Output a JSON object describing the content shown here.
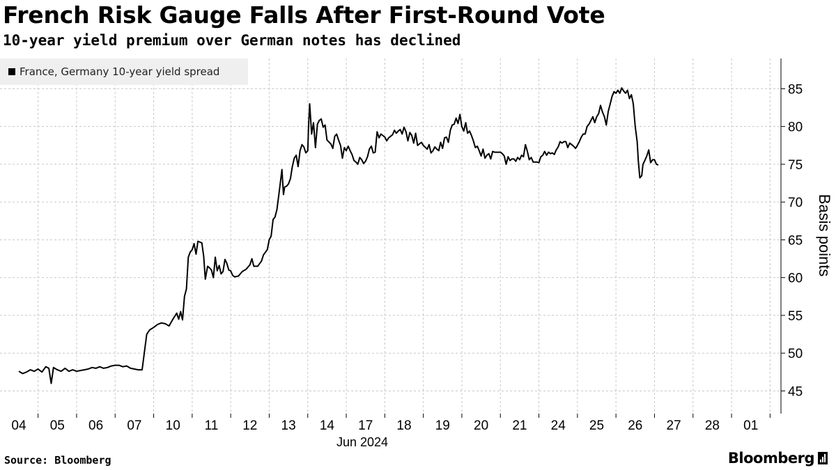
{
  "chart_data": {
    "type": "line",
    "title": "French Risk Gauge Falls After First-Round Vote",
    "subtitle": "10-year yield premium over German notes has declined",
    "ylabel": "Basis points",
    "xlabel": "",
    "ylim": [
      42,
      89
    ],
    "yticks": [
      45,
      50,
      55,
      60,
      65,
      70,
      75,
      80,
      85
    ],
    "categories": [
      "04",
      "05",
      "06",
      "07",
      "10",
      "11",
      "12",
      "13",
      "14",
      "17",
      "18",
      "19",
      "20",
      "21",
      "24",
      "25",
      "26",
      "27",
      "28",
      "01"
    ],
    "month_label": "Jun 2024",
    "legend": [
      "France, Germany 10-year yield spread"
    ],
    "series": [
      {
        "name": "France, Germany 10-year yield spread",
        "color": "#000000",
        "values": [
          [
            0.0,
            47.6
          ],
          [
            0.1,
            47.3
          ],
          [
            0.2,
            47.5
          ],
          [
            0.3,
            47.8
          ],
          [
            0.4,
            47.6
          ],
          [
            0.5,
            47.9
          ],
          [
            0.6,
            47.5
          ],
          [
            0.7,
            48.2
          ],
          [
            0.78,
            48.0
          ],
          [
            0.84,
            46.0
          ],
          [
            0.9,
            48.1
          ],
          [
            1.0,
            47.8
          ],
          [
            1.1,
            47.6
          ],
          [
            1.2,
            48.0
          ],
          [
            1.3,
            47.6
          ],
          [
            1.4,
            47.8
          ],
          [
            1.5,
            47.6
          ],
          [
            1.6,
            47.7
          ],
          [
            1.7,
            47.8
          ],
          [
            1.8,
            47.9
          ],
          [
            1.9,
            48.1
          ],
          [
            2.0,
            48.0
          ],
          [
            2.1,
            48.2
          ],
          [
            2.2,
            48.0
          ],
          [
            2.3,
            48.1
          ],
          [
            2.4,
            48.3
          ],
          [
            2.5,
            48.4
          ],
          [
            2.6,
            48.4
          ],
          [
            2.7,
            48.2
          ],
          [
            2.8,
            48.3
          ],
          [
            2.9,
            48.0
          ],
          [
            3.0,
            47.9
          ],
          [
            3.1,
            47.8
          ],
          [
            3.2,
            47.8
          ],
          [
            3.32,
            52.5
          ],
          [
            3.4,
            53.1
          ],
          [
            3.5,
            53.4
          ],
          [
            3.6,
            53.8
          ],
          [
            3.7,
            54.0
          ],
          [
            3.8,
            53.9
          ],
          [
            3.9,
            53.6
          ],
          [
            4.0,
            54.5
          ],
          [
            4.1,
            55.3
          ],
          [
            4.15,
            54.5
          ],
          [
            4.2,
            55.5
          ],
          [
            4.25,
            54.4
          ],
          [
            4.3,
            57.5
          ],
          [
            4.35,
            58.5
          ],
          [
            4.4,
            62.7
          ],
          [
            4.45,
            63.4
          ],
          [
            4.5,
            63.7
          ],
          [
            4.55,
            64.5
          ],
          [
            4.6,
            63.1
          ],
          [
            4.65,
            64.8
          ],
          [
            4.7,
            64.7
          ],
          [
            4.75,
            64.6
          ],
          [
            4.8,
            62.8
          ],
          [
            4.84,
            59.8
          ],
          [
            4.9,
            61.5
          ],
          [
            4.95,
            61.3
          ],
          [
            5.0,
            61.0
          ],
          [
            5.05,
            60.0
          ],
          [
            5.1,
            62.7
          ],
          [
            5.15,
            60.9
          ],
          [
            5.2,
            61.6
          ],
          [
            5.25,
            60.5
          ],
          [
            5.3,
            60.8
          ],
          [
            5.35,
            62.4
          ],
          [
            5.4,
            61.9
          ],
          [
            5.45,
            61.0
          ],
          [
            5.5,
            60.9
          ],
          [
            5.55,
            60.3
          ],
          [
            5.6,
            60.1
          ],
          [
            5.7,
            60.2
          ],
          [
            5.8,
            60.8
          ],
          [
            5.9,
            61.1
          ],
          [
            6.0,
            61.7
          ],
          [
            6.05,
            62.5
          ],
          [
            6.1,
            61.5
          ],
          [
            6.2,
            61.5
          ],
          [
            6.3,
            62.2
          ],
          [
            6.35,
            63.0
          ],
          [
            6.45,
            63.7
          ],
          [
            6.5,
            65.0
          ],
          [
            6.55,
            65.5
          ],
          [
            6.6,
            67.7
          ],
          [
            6.65,
            68.0
          ],
          [
            6.7,
            69.0
          ],
          [
            6.75,
            71.0
          ],
          [
            6.8,
            73.0
          ],
          [
            6.83,
            74.3
          ],
          [
            6.87,
            71.0
          ],
          [
            6.9,
            72.0
          ],
          [
            6.95,
            72.1
          ],
          [
            7.0,
            72.4
          ],
          [
            7.05,
            73.1
          ],
          [
            7.1,
            74.7
          ],
          [
            7.15,
            75.8
          ],
          [
            7.2,
            76.2
          ],
          [
            7.25,
            74.7
          ],
          [
            7.3,
            76.8
          ],
          [
            7.35,
            77.6
          ],
          [
            7.4,
            77.3
          ],
          [
            7.45,
            76.5
          ],
          [
            7.5,
            76.8
          ],
          [
            7.52,
            80.0
          ],
          [
            7.55,
            83.0
          ],
          [
            7.6,
            79.0
          ],
          [
            7.65,
            80.5
          ],
          [
            7.7,
            77.2
          ],
          [
            7.75,
            80.3
          ],
          [
            7.8,
            80.8
          ],
          [
            7.85,
            81.0
          ],
          [
            7.9,
            79.9
          ],
          [
            7.95,
            80.2
          ],
          [
            8.0,
            78.2
          ],
          [
            8.1,
            77.7
          ],
          [
            8.15,
            77.1
          ],
          [
            8.2,
            78.7
          ],
          [
            8.25,
            79.0
          ],
          [
            8.3,
            78.2
          ],
          [
            8.35,
            77.5
          ],
          [
            8.4,
            75.8
          ],
          [
            8.45,
            77.2
          ],
          [
            8.5,
            76.8
          ],
          [
            8.55,
            77.4
          ],
          [
            8.6,
            76.8
          ],
          [
            8.65,
            76.3
          ],
          [
            8.7,
            75.5
          ],
          [
            8.75,
            75.3
          ],
          [
            8.8,
            75.0
          ],
          [
            8.85,
            75.9
          ],
          [
            8.9,
            75.6
          ],
          [
            8.95,
            75.1
          ],
          [
            9.0,
            75.4
          ],
          [
            9.05,
            76.0
          ],
          [
            9.1,
            77.0
          ],
          [
            9.15,
            77.4
          ],
          [
            9.2,
            76.5
          ],
          [
            9.25,
            76.6
          ],
          [
            9.3,
            79.3
          ],
          [
            9.35,
            78.5
          ],
          [
            9.4,
            79.0
          ],
          [
            9.5,
            78.6
          ],
          [
            9.55,
            78.1
          ],
          [
            9.6,
            78.5
          ],
          [
            9.7,
            78.9
          ],
          [
            9.75,
            79.5
          ],
          [
            9.8,
            79.1
          ],
          [
            9.85,
            79.4
          ],
          [
            9.9,
            79.6
          ],
          [
            9.95,
            79.0
          ],
          [
            10.0,
            79.9
          ],
          [
            10.05,
            79.3
          ],
          [
            10.1,
            78.1
          ],
          [
            10.15,
            79.2
          ],
          [
            10.2,
            78.8
          ],
          [
            10.25,
            77.8
          ],
          [
            10.3,
            79.1
          ],
          [
            10.35,
            77.5
          ],
          [
            10.45,
            77.9
          ],
          [
            10.5,
            77.5
          ],
          [
            10.6,
            77.0
          ],
          [
            10.65,
            77.6
          ],
          [
            10.7,
            76.5
          ],
          [
            10.75,
            76.8
          ],
          [
            10.8,
            77.3
          ],
          [
            10.85,
            77.0
          ],
          [
            10.9,
            76.8
          ],
          [
            10.95,
            77.9
          ],
          [
            11.0,
            77.1
          ],
          [
            11.05,
            78.5
          ],
          [
            11.1,
            78.6
          ],
          [
            11.15,
            77.9
          ],
          [
            11.2,
            79.5
          ],
          [
            11.25,
            80.2
          ],
          [
            11.3,
            80.3
          ],
          [
            11.35,
            81.1
          ],
          [
            11.4,
            80.4
          ],
          [
            11.45,
            81.6
          ],
          [
            11.5,
            80.0
          ],
          [
            11.55,
            79.4
          ],
          [
            11.6,
            80.5
          ],
          [
            11.65,
            79.1
          ],
          [
            11.7,
            79.4
          ],
          [
            11.75,
            78.8
          ],
          [
            11.8,
            78.1
          ],
          [
            11.85,
            77.2
          ],
          [
            11.9,
            77.4
          ],
          [
            11.95,
            76.8
          ],
          [
            12.0,
            76.1
          ],
          [
            12.05,
            77.0
          ],
          [
            12.1,
            75.8
          ],
          [
            12.15,
            76.2
          ],
          [
            12.2,
            76.4
          ],
          [
            12.25,
            75.7
          ],
          [
            12.3,
            76.7
          ],
          [
            12.35,
            76.6
          ],
          [
            12.4,
            76.6
          ],
          [
            12.5,
            76.6
          ],
          [
            12.55,
            76.4
          ],
          [
            12.6,
            76.1
          ],
          [
            12.65,
            75.0
          ],
          [
            12.7,
            76.0
          ],
          [
            12.75,
            75.5
          ],
          [
            12.8,
            75.7
          ],
          [
            12.85,
            75.7
          ],
          [
            12.9,
            75.4
          ],
          [
            12.95,
            75.9
          ],
          [
            13.0,
            75.6
          ],
          [
            13.05,
            76.2
          ],
          [
            13.1,
            76.0
          ],
          [
            13.15,
            77.6
          ],
          [
            13.2,
            76.7
          ],
          [
            13.25,
            75.6
          ],
          [
            13.3,
            75.9
          ],
          [
            13.35,
            75.3
          ],
          [
            13.4,
            75.3
          ],
          [
            13.45,
            75.3
          ],
          [
            13.5,
            75.2
          ],
          [
            13.55,
            76.0
          ],
          [
            13.6,
            76.2
          ],
          [
            13.65,
            76.7
          ],
          [
            13.7,
            76.2
          ],
          [
            13.75,
            76.6
          ],
          [
            13.8,
            76.4
          ],
          [
            13.85,
            76.5
          ],
          [
            13.9,
            76.3
          ],
          [
            13.95,
            76.9
          ],
          [
            14.0,
            77.3
          ],
          [
            14.05,
            78.0
          ],
          [
            14.1,
            77.8
          ],
          [
            14.15,
            78.0
          ],
          [
            14.2,
            78.0
          ],
          [
            14.25,
            77.2
          ],
          [
            14.3,
            77.8
          ],
          [
            14.35,
            77.6
          ],
          [
            14.4,
            77.4
          ],
          [
            14.45,
            77.1
          ],
          [
            14.5,
            77.5
          ],
          [
            14.55,
            78.0
          ],
          [
            14.6,
            78.6
          ],
          [
            14.65,
            79.0
          ],
          [
            14.7,
            79.0
          ],
          [
            14.75,
            80.0
          ],
          [
            14.8,
            80.3
          ],
          [
            14.85,
            80.8
          ],
          [
            14.9,
            81.3
          ],
          [
            14.95,
            80.5
          ],
          [
            15.0,
            81.3
          ],
          [
            15.05,
            81.7
          ],
          [
            15.1,
            82.8
          ],
          [
            15.15,
            81.9
          ],
          [
            15.2,
            81.3
          ],
          [
            15.25,
            80.2
          ],
          [
            15.3,
            82.0
          ],
          [
            15.35,
            83.0
          ],
          [
            15.4,
            84.0
          ],
          [
            15.45,
            84.6
          ],
          [
            15.5,
            84.4
          ],
          [
            15.55,
            84.8
          ],
          [
            15.6,
            84.4
          ],
          [
            15.65,
            85.1
          ],
          [
            15.7,
            84.7
          ],
          [
            15.75,
            84.4
          ],
          [
            15.8,
            84.8
          ],
          [
            15.85,
            83.7
          ],
          [
            15.9,
            84.2
          ],
          [
            15.95,
            83.0
          ],
          [
            16.0,
            80.0
          ],
          [
            16.05,
            78.0
          ],
          [
            16.08,
            75.5
          ],
          [
            16.12,
            73.2
          ],
          [
            16.17,
            73.5
          ],
          [
            16.2,
            75.0
          ],
          [
            16.25,
            75.5
          ],
          [
            16.3,
            76.1
          ],
          [
            16.35,
            76.9
          ],
          [
            16.4,
            75.2
          ],
          [
            16.45,
            75.6
          ],
          [
            16.5,
            75.6
          ],
          [
            16.55,
            75.0
          ],
          [
            16.6,
            74.9
          ]
        ]
      }
    ],
    "source_label": "Source: Bloomberg",
    "brand": "Bloomberg"
  }
}
